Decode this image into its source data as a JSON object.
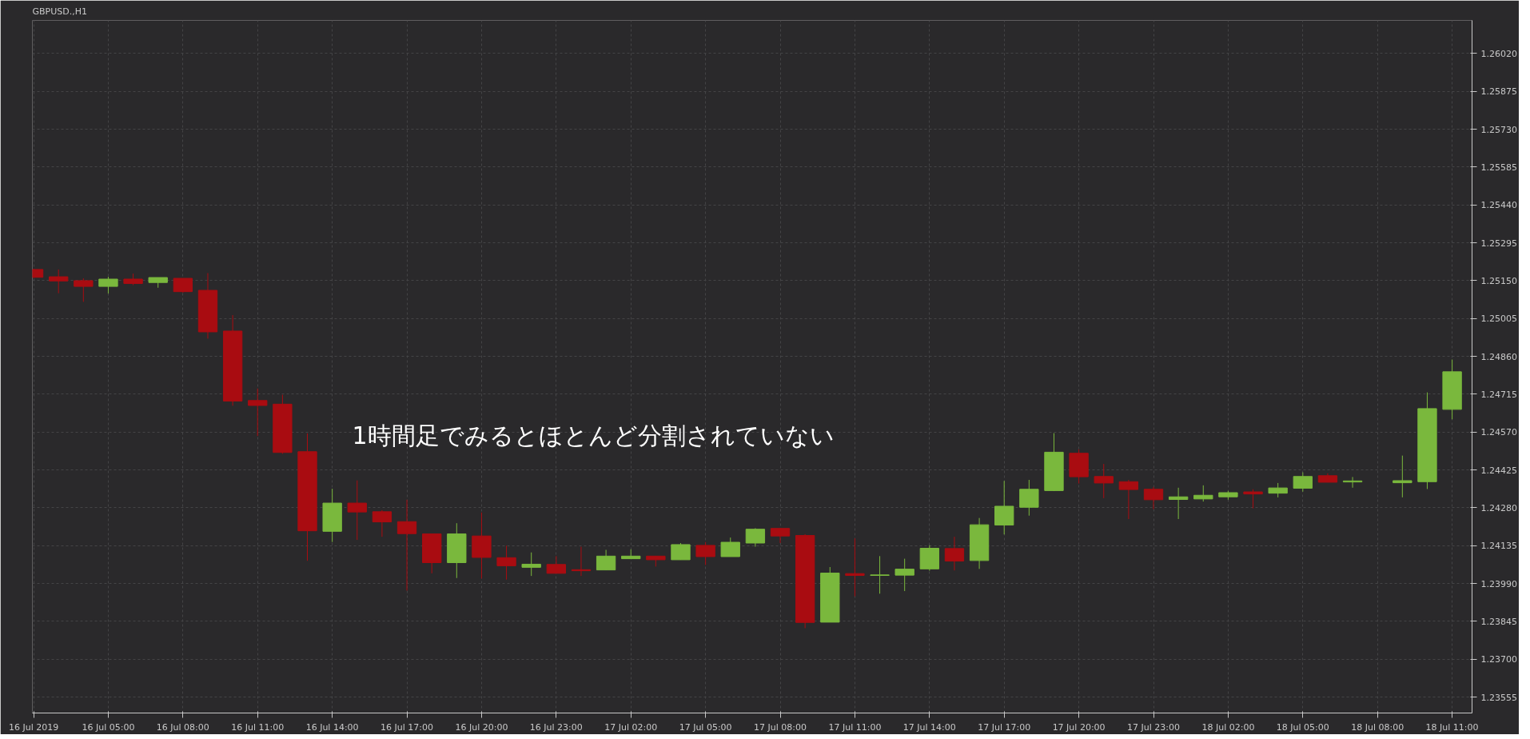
{
  "chart_data": {
    "type": "candlestick",
    "title": "GBPUSD.,H1",
    "annotations": [
      "1時間足でみるとほとんど分割されていない"
    ],
    "categories": [
      "16 Jul 2019",
      null,
      null,
      "16 Jul 05:00",
      null,
      null,
      "16 Jul 08:00",
      null,
      null,
      "16 Jul 11:00",
      null,
      null,
      "16 Jul 14:00",
      null,
      null,
      "16 Jul 17:00",
      null,
      null,
      "16 Jul 20:00",
      null,
      null,
      "16 Jul 23:00",
      null,
      null,
      "17 Jul 02:00",
      null,
      null,
      "17 Jul 05:00",
      null,
      null,
      "17 Jul 08:00",
      null,
      null,
      "17 Jul 11:00",
      null,
      null,
      "17 Jul 14:00",
      null,
      null,
      "17 Jul 17:00",
      null,
      null,
      "17 Jul 20:00",
      null,
      null,
      "17 Jul 23:00",
      null,
      null,
      "18 Jul 02:00",
      null,
      null,
      "18 Jul 05:00",
      null,
      null,
      "18 Jul 08:00",
      null,
      null,
      "18 Jul 11:00"
    ],
    "ohlc": [
      [
        1.25193,
        1.25195,
        1.2516,
        1.25163
      ],
      [
        1.25165,
        1.25193,
        1.25102,
        1.25149
      ],
      [
        1.2515,
        1.25159,
        1.25069,
        1.25128
      ],
      [
        1.25128,
        1.25165,
        1.25101,
        1.25156
      ],
      [
        1.25156,
        1.25177,
        1.25133,
        1.25139
      ],
      [
        1.25143,
        1.25162,
        1.25123,
        1.25162
      ],
      [
        1.25159,
        1.25159,
        1.25104,
        1.25108
      ],
      [
        1.25113,
        1.25179,
        1.24928,
        1.24954
      ],
      [
        1.24957,
        1.25018,
        1.24671,
        1.24689
      ],
      [
        1.24691,
        1.24737,
        1.24555,
        1.24672
      ],
      [
        1.24677,
        1.24713,
        1.24487,
        1.24492
      ],
      [
        1.24495,
        1.24565,
        1.24077,
        1.24192
      ],
      [
        1.2419,
        1.24353,
        1.24149,
        1.24298
      ],
      [
        1.24298,
        1.24385,
        1.24157,
        1.24264
      ],
      [
        1.24265,
        1.24271,
        1.24169,
        1.24226
      ],
      [
        1.24227,
        1.24311,
        1.23963,
        1.24181
      ],
      [
        1.2418,
        1.2418,
        1.24029,
        1.2407
      ],
      [
        1.2407,
        1.24221,
        1.24011,
        1.2418
      ],
      [
        1.24172,
        1.24262,
        1.24009,
        1.2409
      ],
      [
        1.24089,
        1.24135,
        1.24005,
        1.24058
      ],
      [
        1.24052,
        1.24109,
        1.24019,
        1.24064
      ],
      [
        1.24063,
        1.24095,
        1.24029,
        1.24029
      ],
      [
        1.24043,
        1.24131,
        1.24019,
        1.24039
      ],
      [
        1.24042,
        1.24119,
        1.24042,
        1.24095
      ],
      [
        1.24085,
        1.24121,
        1.24085,
        1.24095
      ],
      [
        1.24095,
        1.24095,
        1.24055,
        1.24081
      ],
      [
        1.24081,
        1.24145,
        1.24081,
        1.24139
      ],
      [
        1.24136,
        1.24149,
        1.24061,
        1.24093
      ],
      [
        1.24093,
        1.24166,
        1.24093,
        1.24148
      ],
      [
        1.24145,
        1.24202,
        1.24131,
        1.24198
      ],
      [
        1.24201,
        1.24201,
        1.24145,
        1.24172
      ],
      [
        1.24174,
        1.24179,
        1.23819,
        1.23841
      ],
      [
        1.23842,
        1.24053,
        1.23842,
        1.2403
      ],
      [
        1.24028,
        1.24163,
        1.23941,
        1.24021
      ],
      [
        1.24021,
        1.24095,
        1.23951,
        1.24023
      ],
      [
        1.24022,
        1.24085,
        1.23961,
        1.24045
      ],
      [
        1.24046,
        1.24137,
        1.24039,
        1.24125
      ],
      [
        1.24124,
        1.24169,
        1.2404,
        1.24076
      ],
      [
        1.24078,
        1.24241,
        1.24046,
        1.24215
      ],
      [
        1.24214,
        1.24383,
        1.24178,
        1.24286
      ],
      [
        1.24282,
        1.24387,
        1.2425,
        1.24351
      ],
      [
        1.24346,
        1.24566,
        1.24344,
        1.24493
      ],
      [
        1.24489,
        1.24504,
        1.24373,
        1.24399
      ],
      [
        1.244,
        1.24448,
        1.24317,
        1.24375
      ],
      [
        1.2438,
        1.24387,
        1.24237,
        1.2435
      ],
      [
        1.24351,
        1.2436,
        1.24275,
        1.24311
      ],
      [
        1.24312,
        1.24357,
        1.24237,
        1.24322
      ],
      [
        1.24314,
        1.24366,
        1.24304,
        1.24328
      ],
      [
        1.24322,
        1.24345,
        1.24311,
        1.24338
      ],
      [
        1.24341,
        1.24351,
        1.24278,
        1.24333
      ],
      [
        1.24336,
        1.24375,
        1.2432,
        1.24356
      ],
      [
        1.24355,
        1.24416,
        1.24342,
        1.244
      ],
      [
        1.24403,
        1.24412,
        1.24378,
        1.24378
      ],
      [
        1.24379,
        1.24398,
        1.24357,
        1.24383
      ],
      null,
      [
        1.24376,
        1.2448,
        1.2432,
        1.24384
      ],
      [
        1.2438,
        1.24722,
        1.24352,
        1.2466
      ],
      [
        1.24657,
        1.24848,
        1.24619,
        1.24801
      ]
    ],
    "colors": [
      "#a90c11",
      "#a90c11",
      "#a90c11",
      "#7ab83d",
      "#a90c11",
      "#7ab83d",
      "#a90c11",
      "#a90c11",
      "#a90c11",
      "#a90c11",
      "#a90c11",
      "#a90c11",
      "#7ab83d",
      "#a90c11",
      "#a90c11",
      "#a90c11",
      "#a90c11",
      "#7ab83d",
      "#a90c11",
      "#a90c11",
      "#7ab83d",
      "#a90c11",
      "#a90c11",
      "#7ab83d",
      "#7ab83d",
      "#a90c11",
      "#7ab83d",
      "#a90c11",
      "#7ab83d",
      "#7ab83d",
      "#a90c11",
      "#a90c11",
      "#7ab83d",
      "#a90c11",
      "#7ab83d",
      "#7ab83d",
      "#7ab83d",
      "#a90c11",
      "#7ab83d",
      "#7ab83d",
      "#7ab83d",
      "#7ab83d",
      "#a90c11",
      "#a90c11",
      "#a90c11",
      "#a90c11",
      "#7ab83d",
      "#7ab83d",
      "#7ab83d",
      "#a90c11",
      "#7ab83d",
      "#7ab83d",
      "#a90c11",
      "#7ab83d",
      "#7ab83d",
      "#7ab83d",
      "#7ab83d",
      "#7ab83d"
    ],
    "ylim": [
      1.23494,
      1.26147
    ],
    "yticks": [
      {
        "value": 1.23555,
        "label": "1.23555"
      },
      {
        "value": 1.237,
        "label": "1.23700"
      },
      {
        "value": 1.23845,
        "label": "1.23845"
      },
      {
        "value": 1.2399,
        "label": "1.23990"
      },
      {
        "value": 1.24135,
        "label": "1.24135"
      },
      {
        "value": 1.2428,
        "label": "1.24280"
      },
      {
        "value": 1.24425,
        "label": "1.24425"
      },
      {
        "value": 1.2457,
        "label": "1.24570"
      },
      {
        "value": 1.24715,
        "label": "1.24715"
      },
      {
        "value": 1.2486,
        "label": "1.24860"
      },
      {
        "value": 1.25005,
        "label": "1.25005"
      },
      {
        "value": 1.2515,
        "label": "1.25150"
      },
      {
        "value": 1.25295,
        "label": "1.25295"
      },
      {
        "value": 1.2544,
        "label": "1.25440"
      },
      {
        "value": 1.25585,
        "label": "1.25585"
      },
      {
        "value": 1.2573,
        "label": "1.25730"
      },
      {
        "value": 1.25875,
        "label": "1.25875"
      },
      {
        "value": 1.2602,
        "label": "1.26020"
      }
    ],
    "grid": true
  }
}
